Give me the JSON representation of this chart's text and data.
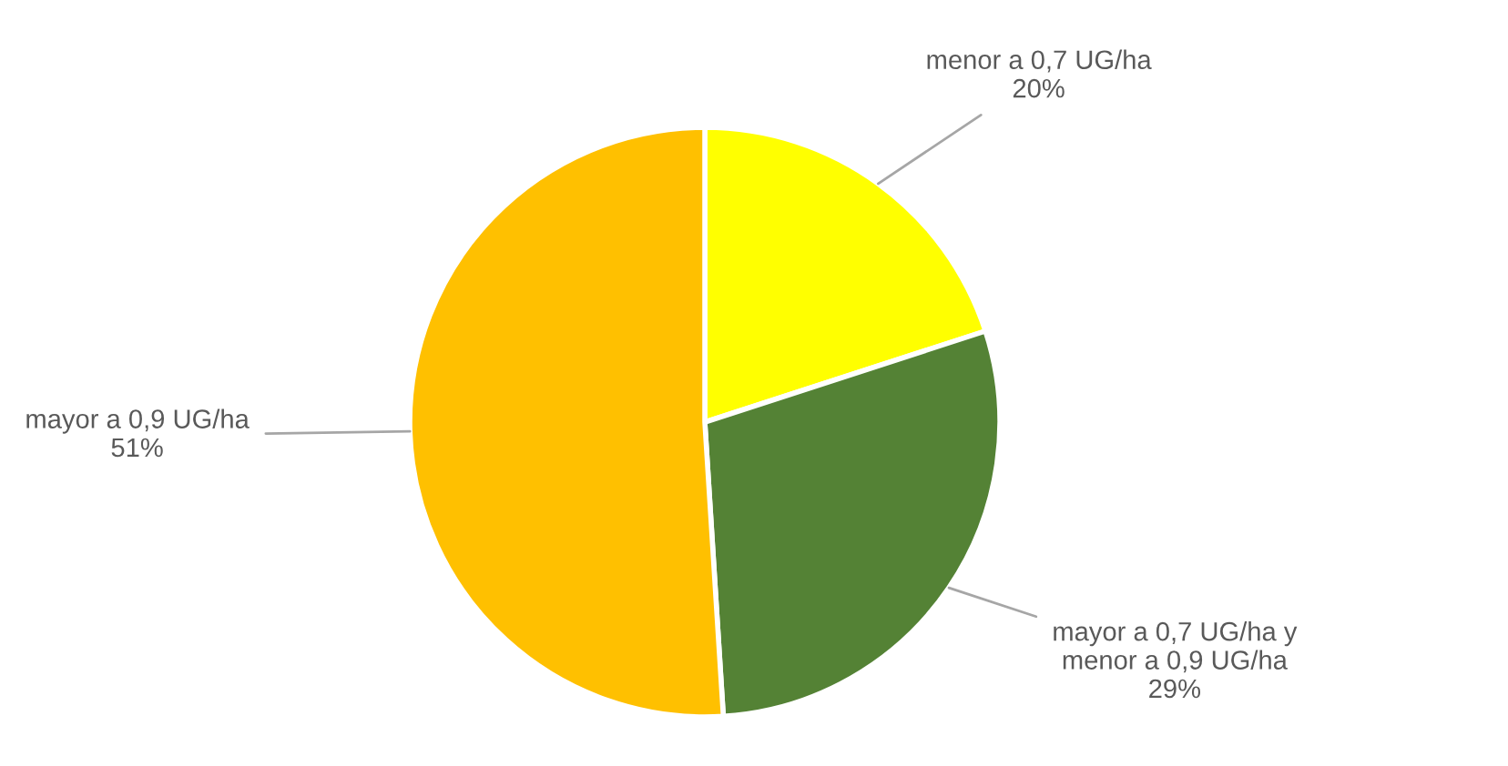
{
  "chart_data": {
    "type": "pie",
    "categories": [
      "menor a 0,7 UG/ha",
      "mayor a 0,7 UG/ha y\nmenor a 0,9 UG/ha",
      "mayor a 0,9 UG/ha"
    ],
    "values": [
      20,
      29,
      51
    ],
    "colors": [
      "#ffff00",
      "#548235",
      "#ffc000"
    ],
    "value_labels": [
      "20%",
      "29%",
      "51%"
    ],
    "legend": false
  }
}
